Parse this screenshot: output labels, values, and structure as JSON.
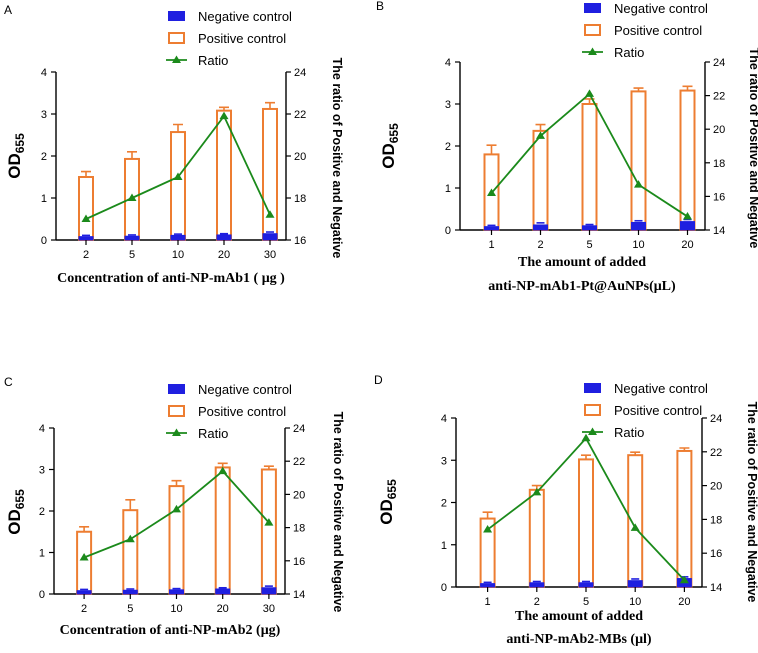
{
  "chart_data": [
    {
      "type": "bar",
      "panel": "A",
      "categories": [
        "2",
        "5",
        "10",
        "20",
        "30"
      ],
      "series": [
        {
          "name": "Negative control",
          "values": [
            0.08,
            0.09,
            0.11,
            0.12,
            0.15
          ],
          "errors": [
            0.03,
            0.03,
            0.03,
            0.03,
            0.04
          ]
        },
        {
          "name": "Positive control",
          "values": [
            1.5,
            1.93,
            2.57,
            3.08,
            3.12
          ],
          "errors": [
            0.13,
            0.17,
            0.18,
            0.08,
            0.15
          ]
        },
        {
          "name": "Ratio",
          "axis": "right",
          "values": [
            17.0,
            18.0,
            19.0,
            21.9,
            17.2
          ]
        }
      ],
      "legend": [
        "Negative control",
        "Positive control",
        "Ratio"
      ],
      "ylabel": "OD",
      "ylabel_sub": "655",
      "y2label": "The ratio of Positive and Negative",
      "xlabel": [
        "Concentration of anti-NP-mAb1 ( μg )"
      ],
      "ylim": [
        0,
        4
      ],
      "yticks": [
        "0",
        "1",
        "2",
        "3",
        "4"
      ],
      "y2lim": [
        16,
        24
      ],
      "y2ticks": [
        "16",
        "18",
        "20",
        "22",
        "24"
      ]
    },
    {
      "type": "bar",
      "panel": "B",
      "categories": [
        "1",
        "2",
        "5",
        "10",
        "20"
      ],
      "series": [
        {
          "name": "Negative control",
          "values": [
            0.08,
            0.12,
            0.1,
            0.18,
            0.2
          ],
          "errors": [
            0.03,
            0.05,
            0.03,
            0.04,
            0.05
          ]
        },
        {
          "name": "Positive control",
          "values": [
            1.8,
            2.36,
            3.0,
            3.3,
            3.32
          ],
          "errors": [
            0.22,
            0.15,
            0.12,
            0.08,
            0.1
          ]
        },
        {
          "name": "Ratio",
          "axis": "right",
          "values": [
            16.2,
            19.6,
            22.1,
            16.7,
            14.8
          ]
        }
      ],
      "legend": [
        "Negative control",
        "Positive control",
        "Ratio"
      ],
      "ylabel": "OD",
      "ylabel_sub": "655",
      "y2label": "The ratio of Positive and Negative",
      "xlabel": [
        "The amount of added",
        "anti-NP-mAb1-Pt@AuNPs(μL)"
      ],
      "ylim": [
        0,
        4
      ],
      "yticks": [
        "0",
        "1",
        "2",
        "3",
        "4"
      ],
      "y2lim": [
        14,
        24
      ],
      "y2ticks": [
        "14",
        "16",
        "18",
        "20",
        "22",
        "24"
      ]
    },
    {
      "type": "bar",
      "panel": "C",
      "categories": [
        "2",
        "5",
        "10",
        "20",
        "30"
      ],
      "series": [
        {
          "name": "Negative control",
          "values": [
            0.08,
            0.09,
            0.1,
            0.12,
            0.15
          ],
          "errors": [
            0.03,
            0.03,
            0.03,
            0.03,
            0.04
          ]
        },
        {
          "name": "Positive control",
          "values": [
            1.5,
            2.02,
            2.6,
            3.05,
            3.0
          ],
          "errors": [
            0.12,
            0.25,
            0.13,
            0.1,
            0.08
          ]
        },
        {
          "name": "Ratio",
          "axis": "right",
          "values": [
            16.2,
            17.3,
            19.1,
            21.4,
            18.3
          ]
        }
      ],
      "legend": [
        "Negative control",
        "Positive control",
        "Ratio"
      ],
      "ylabel": "OD",
      "ylabel_sub": "655",
      "y2label": "The ratio of Positive and Negative",
      "xlabel": [
        "Concentration of anti-NP-mAb2 (μg)"
      ],
      "ylim": [
        0,
        4
      ],
      "yticks": [
        "0",
        "1",
        "2",
        "3",
        "4"
      ],
      "y2lim": [
        14,
        24
      ],
      "y2ticks": [
        "14",
        "16",
        "18",
        "20",
        "22",
        "24"
      ]
    },
    {
      "type": "bar",
      "panel": "D",
      "categories": [
        "1",
        "2",
        "5",
        "10",
        "20"
      ],
      "series": [
        {
          "name": "Negative control",
          "values": [
            0.08,
            0.1,
            0.1,
            0.15,
            0.2
          ],
          "errors": [
            0.03,
            0.03,
            0.03,
            0.04,
            0.04
          ]
        },
        {
          "name": "Positive control",
          "values": [
            1.62,
            2.3,
            3.02,
            3.12,
            3.22
          ],
          "errors": [
            0.15,
            0.1,
            0.1,
            0.07,
            0.07
          ]
        },
        {
          "name": "Ratio",
          "axis": "right",
          "values": [
            17.4,
            19.6,
            22.8,
            17.5,
            14.4
          ]
        }
      ],
      "legend": [
        "Negative control",
        "Positive control",
        "Ratio"
      ],
      "ylabel": "OD",
      "ylabel_sub": "655",
      "y2label": "The ratio of Positive and Negative",
      "xlabel": [
        "The amount of added",
        "anti-NP-mAb2-MBs (μl)"
      ],
      "ylim": [
        0,
        4
      ],
      "yticks": [
        "0",
        "1",
        "2",
        "3",
        "4"
      ],
      "y2lim": [
        14,
        24
      ],
      "y2ticks": [
        "14",
        "16",
        "18",
        "20",
        "22",
        "24"
      ]
    }
  ]
}
